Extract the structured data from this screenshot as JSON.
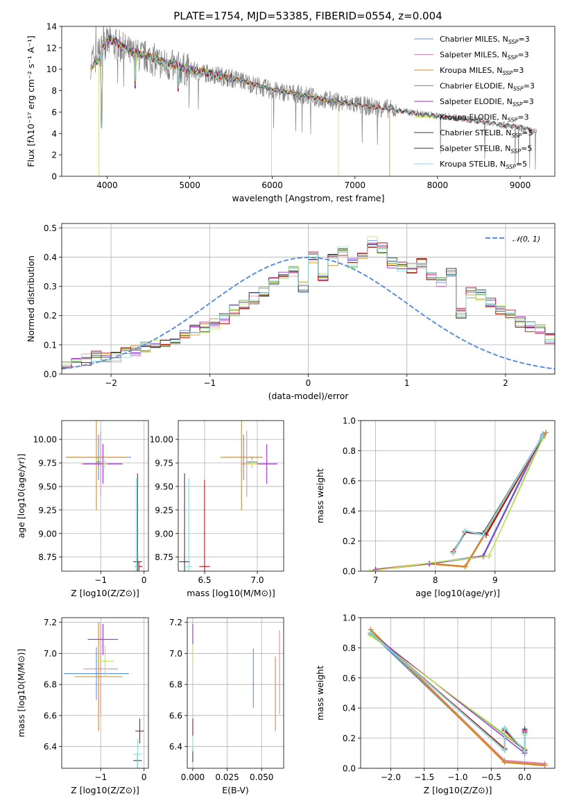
{
  "figure_title": "PLATE=1754, MJD=53385, FIBERID=0554, z=0.004",
  "colors": {
    "Chabrier MILES": "#5b8fde",
    "Salpeter MILES": "#e88aa8",
    "Kroupa MILES": "#d08a2a",
    "Chabrier ELODIE": "#5fa84f",
    "Salpeter ELODIE": "#9b2fc9",
    "Kroupa ELODIE": "#c6e85a",
    "Chabrier STELIB": "#3d3d3d",
    "Salpeter STELIB": "#b31212",
    "Kroupa STELIB": "#88dde0",
    "data": "#808080",
    "normal": "#5b8fde"
  },
  "chart_data": [
    {
      "id": "spectrum",
      "type": "line",
      "title": "PLATE=1754, MJD=53385, FIBERID=0554, z=0.004",
      "xlabel": "wavelength [Angstrom, rest frame]",
      "ylabel": "Flux [fλ10⁻¹⁷ erg cm⁻² s⁻¹ A⁻¹]",
      "xlim": [
        3450,
        9420
      ],
      "ylim": [
        0,
        14
      ],
      "xticks": [
        4000,
        5000,
        6000,
        7000,
        8000,
        9000
      ],
      "yticks": [
        0,
        2,
        4,
        6,
        8,
        10,
        12,
        14
      ],
      "grid": false,
      "legend_position": "upper right",
      "legend": [
        "Chabrier MILES, N_SSP=3",
        "Salpeter MILES, N_SSP=3",
        "Kroupa MILES, N_SSP=3",
        "Chabrier ELODIE, N_SSP=3",
        "Salpeter ELODIE, N_SSP=3",
        "Kroupa ELODIE, N_SSP=3",
        "Chabrier STELIB, N_SSP=5",
        "Salpeter STELIB, N_SSP=5",
        "Kroupa STELIB, N_SSP=5"
      ],
      "legend_entries": [
        {
          "pre": "Chabrier MILES, N",
          "sub": "SSP",
          "post": "=3"
        },
        {
          "pre": "Salpeter MILES, N",
          "sub": "SSP",
          "post": "=3"
        },
        {
          "pre": "Kroupa MILES, N",
          "sub": "SSP",
          "post": "=3"
        },
        {
          "pre": "Chabrier ELODIE, N",
          "sub": "SSP",
          "post": "=3"
        },
        {
          "pre": "Salpeter ELODIE, N",
          "sub": "SSP",
          "post": "=3"
        },
        {
          "pre": "Kroupa ELODIE, N",
          "sub": "SSP",
          "post": "=3"
        },
        {
          "pre": "Chabrier STELIB, N",
          "sub": "SSP",
          "post": "=5"
        },
        {
          "pre": "Salpeter STELIB, N",
          "sub": "SSP",
          "post": "=5"
        },
        {
          "pre": "Kroupa STELIB, N",
          "sub": "SSP",
          "post": "=5"
        }
      ],
      "data_continuum": [
        [
          3800,
          10.6
        ],
        [
          3900,
          11.5
        ],
        [
          4000,
          12.5
        ],
        [
          4100,
          12.3
        ],
        [
          4200,
          11.9
        ],
        [
          4300,
          11.4
        ],
        [
          4500,
          11.1
        ],
        [
          4700,
          10.4
        ],
        [
          5000,
          9.9
        ],
        [
          5300,
          9.5
        ],
        [
          5600,
          9.0
        ],
        [
          6000,
          8.0
        ],
        [
          6300,
          7.7
        ],
        [
          6600,
          7.2
        ],
        [
          7000,
          6.7
        ],
        [
          7400,
          6.3
        ],
        [
          7800,
          5.8
        ],
        [
          8200,
          5.5
        ],
        [
          8600,
          5.1
        ],
        [
          9000,
          4.5
        ],
        [
          9200,
          4.1
        ]
      ],
      "model_continuum": [
        [
          3800,
          10.0
        ],
        [
          3900,
          11.0
        ],
        [
          4000,
          12.8
        ],
        [
          4100,
          12.6
        ],
        [
          4200,
          12.0
        ],
        [
          4300,
          11.6
        ],
        [
          4500,
          11.2
        ],
        [
          4700,
          10.6
        ],
        [
          5000,
          10.0
        ],
        [
          5300,
          9.5
        ],
        [
          5600,
          9.0
        ],
        [
          6000,
          8.1
        ],
        [
          6300,
          7.7
        ],
        [
          6600,
          7.2
        ],
        [
          7000,
          6.7
        ],
        [
          7400,
          6.3
        ],
        [
          7800,
          5.8
        ],
        [
          8200,
          5.4
        ],
        [
          8600,
          5.0
        ],
        [
          9000,
          4.6
        ],
        [
          9200,
          4.3
        ]
      ],
      "model_dropouts": [
        {
          "series": "Kroupa STELIB",
          "x": 5990
        },
        {
          "series": "Kroupa ELODIE",
          "x": 6800
        },
        {
          "series": "Kroupa MILES",
          "x": 7420
        },
        {
          "series": "Kroupa ELODIE",
          "x": 3900
        }
      ]
    },
    {
      "id": "residuals",
      "type": "area",
      "xlabel": "(data-model)/error",
      "ylabel": "Normed distribution",
      "xlim": [
        -2.5,
        2.5
      ],
      "ylim": [
        0,
        0.515
      ],
      "xticks": [
        -2,
        -1,
        0,
        1,
        2
      ],
      "yticks": [
        0.0,
        0.1,
        0.2,
        0.3,
        0.4,
        0.5
      ],
      "grid": true,
      "legend_position": "upper right",
      "legend": [
        "𝒩(0, 1)"
      ],
      "bin_edges_start": -2.5,
      "bin_width": 0.1,
      "base_histogram": [
        0.04,
        0.045,
        0.05,
        0.06,
        0.055,
        0.06,
        0.07,
        0.08,
        0.09,
        0.1,
        0.11,
        0.12,
        0.13,
        0.15,
        0.16,
        0.17,
        0.19,
        0.22,
        0.24,
        0.26,
        0.28,
        0.31,
        0.33,
        0.35,
        0.3,
        0.4,
        0.33,
        0.39,
        0.42,
        0.38,
        0.41,
        0.45,
        0.43,
        0.38,
        0.37,
        0.36,
        0.38,
        0.33,
        0.31,
        0.35,
        0.21,
        0.28,
        0.27,
        0.24,
        0.22,
        0.2,
        0.18,
        0.16,
        0.15,
        0.12,
        0.1,
        0.09,
        0.08,
        0.07,
        0.06,
        0.05,
        0.045,
        0.04,
        0.03,
        0.025,
        0.02
      ]
    },
    {
      "id": "age_vs_Z",
      "type": "scatter",
      "xlabel": "Z [log10(Z/Z⊙)]",
      "ylabel": "age [log10(age/yr)]",
      "xlim": [
        -1.9,
        0.1
      ],
      "ylim": [
        8.6,
        10.2
      ],
      "xticks": [
        -1,
        0
      ],
      "yticks": [
        8.75,
        9.0,
        9.25,
        9.5,
        9.75,
        10.0
      ],
      "grid": true,
      "points": [
        {
          "series": "Chabrier MILES",
          "x": -1.05,
          "y": 9.81,
          "xerr": 0.75,
          "yerr": 0.24
        },
        {
          "series": "Salpeter MILES",
          "x": -1.0,
          "y": 9.74,
          "xerr": 0.45,
          "yerr": 0.35
        },
        {
          "series": "Kroupa MILES",
          "x": -1.1,
          "y": 9.81,
          "xerr": 0.7,
          "yerr": 0.56
        },
        {
          "series": "Chabrier ELODIE",
          "x": -1.05,
          "y": 9.76,
          "xerr": 0.05,
          "yerr": 0.05
        },
        {
          "series": "Salpeter ELODIE",
          "x": -0.95,
          "y": 9.74,
          "xerr": 0.45,
          "yerr": 0.21
        },
        {
          "series": "Kroupa ELODIE",
          "x": -0.9,
          "y": 9.74,
          "xerr": 0.05,
          "yerr": 0.05
        },
        {
          "series": "Chabrier STELIB",
          "x": -0.15,
          "y": 8.7,
          "xerr": 0.1,
          "yerr": 0.94
        },
        {
          "series": "Salpeter STELIB",
          "x": -0.12,
          "y": 8.65,
          "xerr": 0.08,
          "yerr": 0.05
        },
        {
          "series": "Kroupa STELIB",
          "x": -0.18,
          "y": 8.65,
          "xerr": 0.05,
          "yerr": 0.94
        }
      ]
    },
    {
      "id": "age_vs_mass",
      "type": "scatter",
      "xlabel": "mass [log10(M/M⊙)]",
      "ylabel": "",
      "xlim": [
        6.25,
        7.25
      ],
      "ylim": [
        8.6,
        10.2
      ],
      "xticks": [
        6.5,
        7.0
      ],
      "yticks": [
        8.75,
        9.0,
        9.25,
        9.5,
        9.75,
        10.0
      ],
      "grid": true,
      "points": [
        {
          "series": "Chabrier MILES",
          "x": 6.87,
          "y": 9.81,
          "xerr": 0.18,
          "yerr": 0.24
        },
        {
          "series": "Salpeter MILES",
          "x": 6.9,
          "y": 9.74,
          "xerr": 0.05,
          "yerr": 0.35
        },
        {
          "series": "Kroupa MILES",
          "x": 6.85,
          "y": 9.81,
          "xerr": 0.2,
          "yerr": 0.56
        },
        {
          "series": "Chabrier ELODIE",
          "x": 6.95,
          "y": 9.76,
          "xerr": 0.05,
          "yerr": 0.05
        },
        {
          "series": "Salpeter ELODIE",
          "x": 7.09,
          "y": 9.74,
          "xerr": 0.1,
          "yerr": 0.21
        },
        {
          "series": "Kroupa ELODIE",
          "x": 6.95,
          "y": 9.74,
          "xerr": 0.05,
          "yerr": 0.05
        },
        {
          "series": "Chabrier STELIB",
          "x": 6.31,
          "y": 8.7,
          "xerr": 0.05,
          "yerr": 0.94
        },
        {
          "series": "Salpeter STELIB",
          "x": 6.5,
          "y": 8.65,
          "xerr": 0.05,
          "yerr": 0.92
        },
        {
          "series": "Kroupa STELIB",
          "x": 6.35,
          "y": 8.65,
          "xerr": 0.03,
          "yerr": 0.94
        }
      ]
    },
    {
      "id": "weight_vs_age",
      "type": "line",
      "xlabel": "age [log10(age/yr)]",
      "ylabel": "mass weight",
      "xlim": [
        6.75,
        10.0
      ],
      "ylim": [
        0,
        1.0
      ],
      "xticks": [
        7,
        8,
        9
      ],
      "yticks": [
        0.0,
        0.2,
        0.4,
        0.6,
        0.8,
        1.0
      ],
      "grid": true,
      "series": [
        {
          "name": "Chabrier MILES",
          "x": [
            7.0,
            7.9,
            8.8,
            9.8
          ],
          "y": [
            0.01,
            0.05,
            0.1,
            0.91
          ]
        },
        {
          "name": "Salpeter MILES",
          "x": [
            7.0,
            7.9,
            8.5,
            9.85
          ],
          "y": [
            0.01,
            0.05,
            0.03,
            0.92
          ]
        },
        {
          "name": "Kroupa MILES",
          "x": [
            7.0,
            7.9,
            8.5,
            9.85
          ],
          "y": [
            0.01,
            0.05,
            0.03,
            0.92
          ]
        },
        {
          "name": "Chabrier ELODIE",
          "x": [
            7.0,
            7.9,
            8.9,
            9.8
          ],
          "y": [
            0.01,
            0.05,
            0.1,
            0.89
          ]
        },
        {
          "name": "Salpeter ELODIE",
          "x": [
            7.0,
            7.9,
            8.8,
            9.8
          ],
          "y": [
            0.01,
            0.05,
            0.1,
            0.9
          ]
        },
        {
          "name": "Kroupa ELODIE",
          "x": [
            6.9,
            8.0,
            8.9,
            9.8
          ],
          "y": [
            0.0,
            0.06,
            0.1,
            0.88
          ]
        },
        {
          "name": "Chabrier STELIB",
          "x": [
            8.3,
            8.5,
            8.8,
            9.8
          ],
          "y": [
            0.12,
            0.26,
            0.25,
            0.9
          ]
        },
        {
          "name": "Salpeter STELIB",
          "x": [
            8.3,
            8.5,
            8.85,
            9.8
          ],
          "y": [
            0.13,
            0.26,
            0.24,
            0.9
          ]
        },
        {
          "name": "Kroupa STELIB",
          "x": [
            8.3,
            8.5,
            8.8,
            9.8
          ],
          "y": [
            0.12,
            0.27,
            0.24,
            0.9
          ]
        }
      ]
    },
    {
      "id": "mass_vs_Z",
      "type": "scatter",
      "xlabel": "Z [log10(Z/Z⊙)]",
      "ylabel": "mass [log10(M/M⊙)]",
      "xlim": [
        -1.9,
        0.1
      ],
      "ylim": [
        6.26,
        7.23
      ],
      "xticks": [
        -1,
        0
      ],
      "yticks": [
        6.4,
        6.6,
        6.8,
        7.0,
        7.2
      ],
      "grid": true,
      "points": [
        {
          "series": "Chabrier MILES",
          "x": -1.1,
          "y": 6.87,
          "xerr": 0.75,
          "yerr": 0.17
        },
        {
          "series": "Salpeter MILES",
          "x": -1.0,
          "y": 6.9,
          "xerr": 0.4,
          "yerr": 0.29
        },
        {
          "series": "Kroupa MILES",
          "x": -1.05,
          "y": 6.85,
          "xerr": 0.55,
          "yerr": 0.35
        },
        {
          "series": "Chabrier ELODIE",
          "x": -0.9,
          "y": 6.95,
          "xerr": 0.05,
          "yerr": 0.1
        },
        {
          "series": "Salpeter ELODIE",
          "x": -0.95,
          "y": 7.09,
          "xerr": 0.35,
          "yerr": 0.1
        },
        {
          "series": "Kroupa ELODIE",
          "x": -0.9,
          "y": 6.95,
          "xerr": 0.2,
          "yerr": 0.1
        },
        {
          "series": "Chabrier STELIB",
          "x": -0.15,
          "y": 6.31,
          "xerr": 0.1,
          "yerr": 0.05
        },
        {
          "series": "Salpeter STELIB",
          "x": -0.1,
          "y": 6.5,
          "xerr": 0.1,
          "yerr": 0.08
        },
        {
          "series": "Kroupa STELIB",
          "x": -0.15,
          "y": 6.35,
          "xerr": 0.1,
          "yerr": 0.1
        }
      ]
    },
    {
      "id": "mass_vs_ebv",
      "type": "scatter",
      "xlabel": "E(B-V)",
      "ylabel": "",
      "xlim": [
        -0.004,
        0.066
      ],
      "ylim": [
        6.26,
        7.23
      ],
      "xticks": [
        0.0,
        0.025,
        0.05
      ],
      "xticklabels": [
        "0.000",
        "0.025",
        "0.050"
      ],
      "yticks": [
        6.4,
        6.6,
        6.8,
        7.0,
        7.2
      ],
      "grid": true,
      "points": [
        {
          "series": "Chabrier MILES",
          "x": 0.044,
          "y": 6.84,
          "xerr": 0.0,
          "yerr": 0.19
        },
        {
          "series": "Salpeter MILES",
          "x": 0.063,
          "y": 6.88,
          "xerr": 0.0,
          "yerr": 0.27
        },
        {
          "series": "Kroupa MILES",
          "x": 0.06,
          "y": 6.74,
          "xerr": 0.0,
          "yerr": 0.24
        },
        {
          "series": "Chabrier ELODIE",
          "x": 0.0,
          "y": 7.0,
          "xerr": 0.0,
          "yerr": 0.05
        },
        {
          "series": "Salpeter ELODIE",
          "x": 0.0,
          "y": 7.12,
          "xerr": 0.0,
          "yerr": 0.07
        },
        {
          "series": "Kroupa ELODIE",
          "x": 0.0,
          "y": 7.0,
          "xerr": 0.0,
          "yerr": 0.06
        },
        {
          "series": "Chabrier STELIB",
          "x": 0.0,
          "y": 6.35,
          "xerr": 0.0,
          "yerr": 0.05
        },
        {
          "series": "Salpeter STELIB",
          "x": 0.0,
          "y": 6.52,
          "xerr": 0.0,
          "yerr": 0.06
        },
        {
          "series": "Kroupa STELIB",
          "x": 0.0,
          "y": 6.42,
          "xerr": 0.0,
          "yerr": 0.05
        }
      ]
    },
    {
      "id": "weight_vs_Z",
      "type": "line",
      "xlabel": "Z [log10(Z/Z⊙)]",
      "ylabel": "mass weight",
      "xlim": [
        -2.45,
        0.45
      ],
      "ylim": [
        0,
        1.0
      ],
      "xticks": [
        -2.0,
        -1.5,
        -1.0,
        -0.5,
        0.0
      ],
      "xticklabels": [
        "−2.0",
        "−1.5",
        "−1.0",
        "−0.5",
        "0.0"
      ],
      "yticks": [
        0.0,
        0.2,
        0.4,
        0.6,
        0.8,
        1.0
      ],
      "grid": true,
      "series": [
        {
          "name": "Chabrier MILES",
          "x": [
            -2.3,
            -0.3,
            0.3
          ],
          "y": [
            0.9,
            0.05,
            0.03
          ]
        },
        {
          "name": "Salpeter MILES",
          "x": [
            -2.3,
            -0.3,
            0.3
          ],
          "y": [
            0.92,
            0.05,
            0.03
          ]
        },
        {
          "name": "Kroupa MILES",
          "x": [
            -2.3,
            -0.3,
            0.3
          ],
          "y": [
            0.92,
            0.04,
            0.02
          ]
        },
        {
          "name": "Chabrier ELODIE",
          "x": [
            -2.3,
            0.0,
            0.0
          ],
          "y": [
            0.89,
            0.12,
            0.23
          ]
        },
        {
          "name": "Salpeter ELODIE",
          "x": [
            -2.3,
            0.0,
            0.0
          ],
          "y": [
            0.9,
            0.1,
            0.25
          ]
        },
        {
          "name": "Kroupa ELODIE",
          "x": [
            -2.3,
            0.0,
            0.0
          ],
          "y": [
            0.88,
            0.13,
            0.22
          ]
        },
        {
          "name": "Chabrier STELIB",
          "x": [
            -2.3,
            -0.3,
            -0.3,
            0.0,
            0.0
          ],
          "y": [
            0.9,
            0.12,
            0.26,
            0.11,
            0.26
          ]
        },
        {
          "name": "Salpeter STELIB",
          "x": [
            -2.3,
            -0.3,
            -0.3,
            0.0,
            0.0
          ],
          "y": [
            0.9,
            0.13,
            0.25,
            0.12,
            0.24
          ]
        },
        {
          "name": "Kroupa STELIB",
          "x": [
            -2.3,
            -0.3,
            -0.3,
            0.0,
            0.0
          ],
          "y": [
            0.9,
            0.12,
            0.27,
            0.11,
            0.23
          ]
        }
      ]
    }
  ]
}
